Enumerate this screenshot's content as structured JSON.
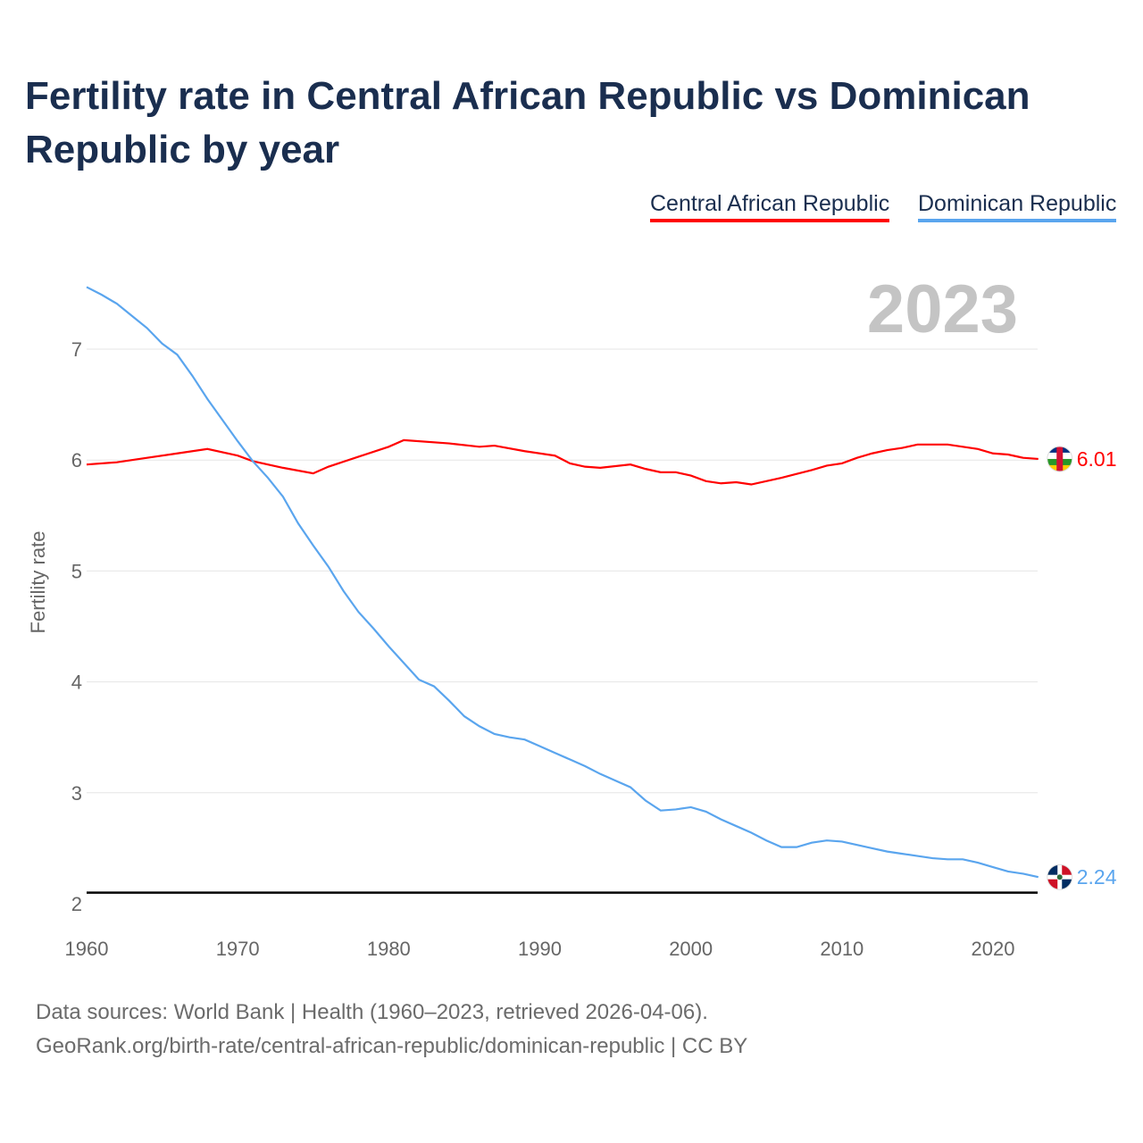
{
  "title": "Fertility rate in Central African Republic vs Dominican Republic by year",
  "legend": [
    "Central African Republic",
    "Dominican Republic"
  ],
  "year_label": "2023",
  "footer": {
    "line1": "Data sources: World Bank | Health (1960–2023, retrieved 2026-04-06).",
    "line2": "GeoRank.org/birth-rate/central-african-republic/dominican-republic | CC BY"
  },
  "chart_data": {
    "type": "line",
    "title": "Fertility rate in Central African Republic vs Dominican Republic by year",
    "xlabel": "",
    "ylabel": "Fertility rate",
    "xlim": [
      1960,
      2023
    ],
    "ylim": [
      2,
      7.6
    ],
    "xticks": [
      "1960",
      "1970",
      "1980",
      "1990",
      "2000",
      "2010",
      "2020"
    ],
    "yticks": [
      "2",
      "3",
      "4",
      "5",
      "6",
      "7"
    ],
    "grid": true,
    "reference_line": 2.1,
    "end_labels": [
      "6.01",
      "2.24"
    ],
    "series": [
      {
        "name": "Central African Republic",
        "color": "#ff0000",
        "x": [
          1960,
          1962,
          1964,
          1966,
          1968,
          1970,
          1971,
          1973,
          1975,
          1976,
          1978,
          1980,
          1981,
          1984,
          1986,
          1987,
          1989,
          1991,
          1992,
          1993,
          1994,
          1996,
          1997,
          1998,
          1999,
          2000,
          2001,
          2002,
          2003,
          2004,
          2006,
          2008,
          2009,
          2010,
          2011,
          2012,
          2013,
          2014,
          2015,
          2017,
          2019,
          2020,
          2021,
          2022,
          2023
        ],
        "values": [
          5.96,
          5.98,
          6.02,
          6.06,
          6.1,
          6.04,
          5.99,
          5.93,
          5.88,
          5.94,
          6.03,
          6.12,
          6.18,
          6.15,
          6.12,
          6.13,
          6.08,
          6.04,
          5.97,
          5.94,
          5.93,
          5.96,
          5.92,
          5.89,
          5.89,
          5.86,
          5.81,
          5.79,
          5.8,
          5.78,
          5.84,
          5.91,
          5.95,
          5.97,
          6.02,
          6.06,
          6.09,
          6.11,
          6.14,
          6.14,
          6.1,
          6.06,
          6.05,
          6.02,
          6.01
        ]
      },
      {
        "name": "Dominican Republic",
        "color": "#5aa5ee",
        "x": [
          1960,
          1961,
          1962,
          1963,
          1964,
          1965,
          1966,
          1967,
          1968,
          1969,
          1970,
          1971,
          1972,
          1973,
          1974,
          1975,
          1976,
          1977,
          1978,
          1979,
          1980,
          1981,
          1982,
          1983,
          1984,
          1985,
          1986,
          1987,
          1988,
          1989,
          1990,
          1991,
          1992,
          1993,
          1994,
          1995,
          1996,
          1997,
          1998,
          1999,
          2000,
          2001,
          2002,
          2003,
          2004,
          2005,
          2006,
          2007,
          2008,
          2009,
          2010,
          2011,
          2012,
          2013,
          2014,
          2015,
          2016,
          2017,
          2018,
          2019,
          2020,
          2021,
          2022,
          2023
        ],
        "values": [
          7.56,
          7.49,
          7.41,
          7.3,
          7.19,
          7.05,
          6.95,
          6.76,
          6.55,
          6.36,
          6.17,
          5.99,
          5.84,
          5.67,
          5.43,
          5.23,
          5.04,
          4.82,
          4.63,
          4.48,
          4.32,
          4.17,
          4.02,
          3.96,
          3.83,
          3.69,
          3.6,
          3.53,
          3.5,
          3.48,
          3.42,
          3.36,
          3.3,
          3.24,
          3.17,
          3.11,
          3.05,
          2.93,
          2.84,
          2.85,
          2.87,
          2.83,
          2.76,
          2.7,
          2.64,
          2.57,
          2.51,
          2.51,
          2.55,
          2.57,
          2.56,
          2.53,
          2.5,
          2.47,
          2.45,
          2.43,
          2.41,
          2.4,
          2.4,
          2.37,
          2.33,
          2.29,
          2.27,
          2.24
        ]
      }
    ]
  }
}
